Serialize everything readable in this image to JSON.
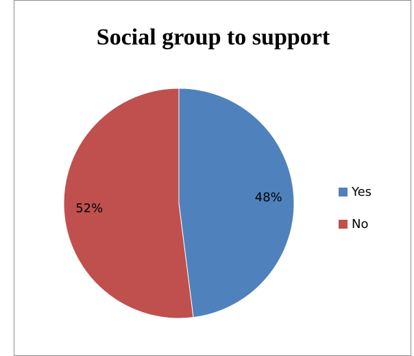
{
  "chart_data": {
    "type": "pie",
    "title": "Social group to support",
    "categories": [
      "Yes",
      "No"
    ],
    "values": [
      48,
      52
    ],
    "data_labels": [
      "48%",
      "52%"
    ],
    "colors": [
      "#4F81BD",
      "#C0504D"
    ],
    "legend_position": "right"
  }
}
